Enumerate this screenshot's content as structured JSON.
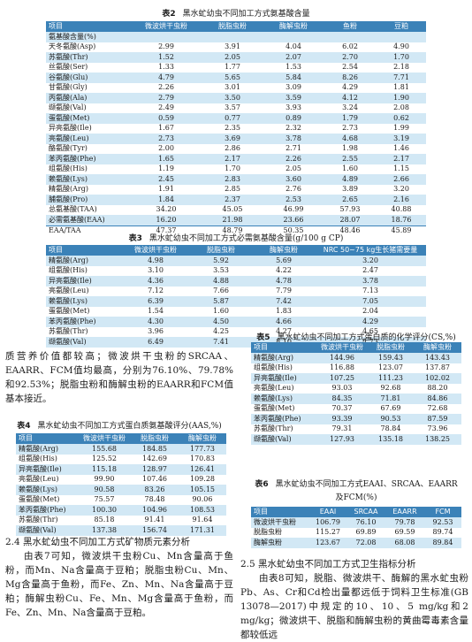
{
  "t2": {
    "label": "表2",
    "title": "黑水虻幼虫不同加工方式氨基酸含量",
    "headers": [
      "项目",
      "微波烘干虫粉",
      "脱脂虫粉",
      "酶解虫粉",
      "鱼粉",
      "豆粕"
    ],
    "group": "氨基酸含量(%)",
    "rows": [
      [
        "天冬氨酸(Asp)",
        "2.99",
        "3.91",
        "4.04",
        "6.02",
        "4.90"
      ],
      [
        "苏氨酸(Thr)",
        "1.52",
        "2.05",
        "2.07",
        "2.70",
        "1.70"
      ],
      [
        "丝氨酸(Ser)",
        "1.33",
        "1.77",
        "1.53",
        "2.54",
        "2.18"
      ],
      [
        "谷氨酸(Glu)",
        "4.79",
        "5.65",
        "5.84",
        "8.26",
        "7.71"
      ],
      [
        "甘氨酸(Gly)",
        "2.26",
        "3.01",
        "3.09",
        "4.29",
        "1.81"
      ],
      [
        "丙氨酸(Ala)",
        "2.79",
        "3.50",
        "3.59",
        "4.12",
        "1.90"
      ],
      [
        "缬氨酸(Val)",
        "2.49",
        "3.57",
        "3.93",
        "3.24",
        "2.08"
      ],
      [
        "蛋氨酸(Met)",
        "0.59",
        "0.77",
        "0.89",
        "1.79",
        "0.62"
      ],
      [
        "异亮氨酸(Ile)",
        "1.67",
        "2.35",
        "2.32",
        "2.73",
        "1.99"
      ],
      [
        "亮氨酸(Leu)",
        "2.73",
        "3.69",
        "3.78",
        "4.68",
        "3.19"
      ],
      [
        "酪氨酸(Tyr)",
        "2.00",
        "2.86",
        "2.71",
        "1.98",
        "1.46"
      ],
      [
        "苯丙氨酸(Phe)",
        "1.65",
        "2.17",
        "2.26",
        "2.55",
        "2.17"
      ],
      [
        "组氨酸(His)",
        "1.19",
        "1.70",
        "2.05",
        "1.60",
        "1.15"
      ],
      [
        "赖氨酸(Lys)",
        "2.45",
        "2.83",
        "3.60",
        "4.89",
        "2.66"
      ],
      [
        "精氨酸(Arg)",
        "1.91",
        "2.85",
        "2.76",
        "3.89",
        "3.20"
      ],
      [
        "脯氨酸(Pro)",
        "1.84",
        "2.37",
        "2.53",
        "2.65",
        "2.16"
      ],
      [
        "总氨基酸(TAA)",
        "34.20",
        "45.05",
        "46.99",
        "57.93",
        "40.88"
      ],
      [
        "必需氨基酸(EAA)",
        "16.20",
        "21.98",
        "23.66",
        "28.07",
        "18.76"
      ]
    ],
    "last": [
      "EAA/TAA",
      "47.37",
      "48.79",
      "50.35",
      "48.46",
      "45.89"
    ]
  },
  "t3": {
    "label": "表3",
    "title": "黑水虻幼虫不同加工方式必需氨基酸含量(g/100 g CP)",
    "headers": [
      "项目",
      "微波烘干虫粉",
      "脱脂虫粉",
      "酶解虫粉",
      "NRC 50~75 kg生长猪需要量"
    ],
    "rows": [
      [
        "精氨酸(Arg)",
        "4.98",
        "5.92",
        "5.69",
        "3.20"
      ],
      [
        "组氨酸(His)",
        "3.10",
        "3.53",
        "4.22",
        "2.47"
      ],
      [
        "异亮氨酸(Ile)",
        "4.36",
        "4.88",
        "4.78",
        "3.78"
      ],
      [
        "亮氨酸(Leu)",
        "7.12",
        "7.66",
        "7.79",
        "7.13"
      ],
      [
        "赖氨酸(Lys)",
        "6.39",
        "5.87",
        "7.42",
        "7.05"
      ],
      [
        "蛋氨酸(Met)",
        "1.54",
        "1.60",
        "1.83",
        "2.04"
      ],
      [
        "苯丙氨酸(Phe)",
        "4.30",
        "4.50",
        "4.66",
        "4.29"
      ],
      [
        "苏氨酸(Thr)",
        "3.96",
        "4.25",
        "4.27",
        "4.65"
      ],
      [
        "缬氨酸(Val)",
        "6.49",
        "7.41",
        "8.10",
        "4.73"
      ]
    ]
  },
  "para1": "质营养价值都较高；微波烘干虫粉的SRCAA、EAARR、FCM值均最高，分别为76.10%、79.78%和92.53%；脱脂虫粉和酶解虫粉的EAARR和FCM值基本接近。",
  "t4": {
    "label": "表4",
    "title": "黑水虻幼虫不同加工方式蛋白质氨基酸评分(AAS,%)",
    "headers": [
      "项目",
      "微波烘干虫粉",
      "脱脂虫粉",
      "酶解虫粉"
    ],
    "rows": [
      [
        "精氨酸(Arg)",
        "155.68",
        "184.85",
        "177.73"
      ],
      [
        "组氨酸(His)",
        "125.52",
        "142.69",
        "170.83"
      ],
      [
        "异亮氨酸(Ile)",
        "115.18",
        "128.97",
        "126.41"
      ],
      [
        "亮氨酸(Leu)",
        "99.90",
        "107.46",
        "109.28"
      ],
      [
        "赖氨酸(Lys)",
        "90.58",
        "83.26",
        "105.15"
      ],
      [
        "蛋氨酸(Met)",
        "75.57",
        "78.48",
        "90.06"
      ],
      [
        "苯丙氨酸(Phe)",
        "100.30",
        "104.96",
        "108.53"
      ],
      [
        "苏氨酸(Thr)",
        "85.18",
        "91.41",
        "91.64"
      ],
      [
        "缬氨酸(Val)",
        "137.38",
        "156.74",
        "171.31"
      ]
    ]
  },
  "t5": {
    "label": "表5",
    "title": "黑水虻幼虫不同加工方式蛋白质的化学评分(CS,%)",
    "headers": [
      "项目",
      "微波烘干虫粉",
      "脱脂虫粉",
      "酶解虫粉"
    ],
    "rows": [
      [
        "精氨酸(Arg)",
        "144.96",
        "159.43",
        "143.43"
      ],
      [
        "组氨酸(His)",
        "116.88",
        "123.07",
        "137.87"
      ],
      [
        "异亮氨酸(Ile)",
        "107.25",
        "111.23",
        "102.02"
      ],
      [
        "亮氨酸(Leu)",
        "93.03",
        "92.68",
        "88.20"
      ],
      [
        "赖氨酸(Lys)",
        "84.35",
        "71.81",
        "84.86"
      ],
      [
        "蛋氨酸(Met)",
        "70.37",
        "67.69",
        "72.68"
      ],
      [
        "苯丙氨酸(Phe)",
        "93.39",
        "90.53",
        "87.59"
      ],
      [
        "苏氨酸(Thr)",
        "79.31",
        "78.84",
        "73.96"
      ],
      [
        "缬氨酸(Val)",
        "127.93",
        "135.18",
        "138.25"
      ]
    ]
  },
  "t6": {
    "label": "表6",
    "title_line1": "黑水虻幼虫不同加工方式EAAI、SRCAA、EAARR",
    "title_line2": "及FCM(%)",
    "headers": [
      "项目",
      "EAAI",
      "SRCAA",
      "EAARR",
      "FCM"
    ],
    "rows": [
      [
        "微波烘干虫粉",
        "106.79",
        "76.10",
        "79.78",
        "92.53"
      ],
      [
        "脱脂虫粉",
        "115.27",
        "69.89",
        "69.59",
        "89.74"
      ],
      [
        "酶解虫粉",
        "123.67",
        "72.08",
        "68.08",
        "89.84"
      ]
    ]
  },
  "sec24": {
    "heading": "2.4  黑水虻幼虫不同加工方式矿物质元素分析",
    "text": "由表7可知，微波烘干虫粉Cu、Mn含量高于鱼粉，而Mn、Na含量高于豆粕；脱脂虫粉Cu、Mn、Mg含量高于鱼粉，而Fe、Zn、Mn、Na含量高于豆粕；酶解虫粉Cu、Fe、Mn、Mg含量高于鱼粉，而Fe、Zn、Mn、Na含量高于豆粕。"
  },
  "sec25": {
    "heading": "2.5  黑水虻幼虫不同加工方式卫生指标分析",
    "text": "由表8可知，脱脂、微波烘干、酶解的黑水虻虫粉Pb、As、Cr和Cd检出量都远低于饲料卫生标准(GB 13078—2017)中规定的10、10、5 mg/kg和2 mg/kg；微波烘干、脱脂和酶解虫粉的黄曲霉毒素含量都较低远"
  }
}
